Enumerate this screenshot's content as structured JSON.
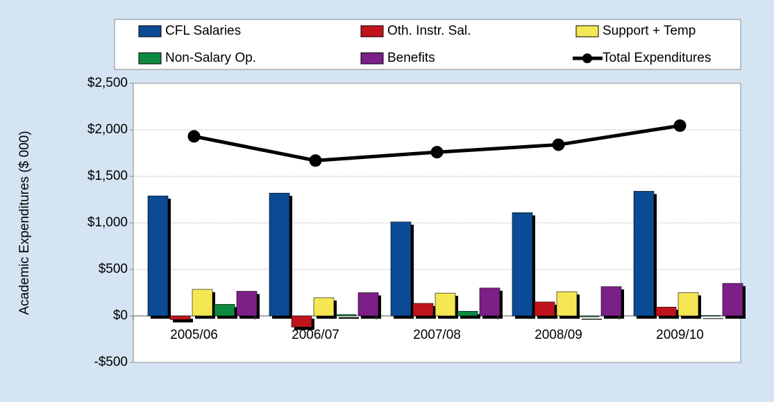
{
  "chart_data": {
    "type": "bar",
    "y_label": "Academic Expenditures ($ 000)",
    "categories": [
      "2005/06",
      "2006/07",
      "2007/08",
      "2008/09",
      "2009/10"
    ],
    "series": [
      {
        "name": "CFL Salaries",
        "color": "#0b4a94",
        "values": [
          1290,
          1320,
          1010,
          1110,
          1340
        ]
      },
      {
        "name": "Oth. Instr. Sal.",
        "color": "#c0141c",
        "values": [
          -40,
          -120,
          135,
          150,
          95
        ]
      },
      {
        "name": "Support + Temp",
        "color": "#f5e653",
        "values": [
          285,
          195,
          245,
          260,
          250
        ]
      },
      {
        "name": "Non-Salary Op.",
        "color": "#0e8a40",
        "values": [
          125,
          15,
          50,
          -10,
          5
        ]
      },
      {
        "name": "Benefits",
        "color": "#7c1f86",
        "values": [
          265,
          250,
          300,
          315,
          350
        ]
      },
      {
        "name": "Total Expenditures",
        "color": "#000000",
        "type": "line",
        "values": [
          1930,
          1670,
          1760,
          1840,
          2045
        ]
      }
    ],
    "ylim": [
      -500,
      2500
    ],
    "yticks": [
      {
        "value": -500,
        "label": "-$500"
      },
      {
        "value": 0,
        "label": "$0"
      },
      {
        "value": 500,
        "label": "$500"
      },
      {
        "value": 1000,
        "label": "$1,000"
      },
      {
        "value": 1500,
        "label": "$1,500"
      },
      {
        "value": 2000,
        "label": "$2,000"
      },
      {
        "value": 2500,
        "label": "$2,500"
      }
    ],
    "grid": true,
    "legend": "top"
  }
}
